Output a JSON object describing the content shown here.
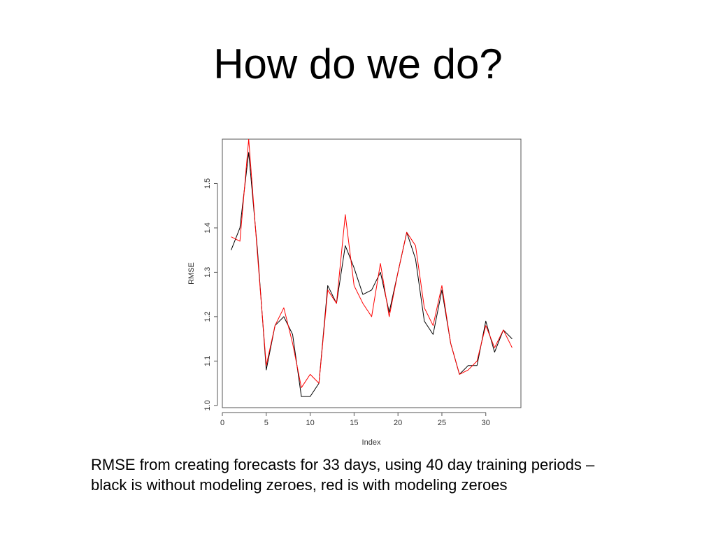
{
  "slide": {
    "title": "How do we do?",
    "caption_line1": "RMSE from creating forecasts for 33 days, using 40 day training periods –",
    "caption_line2": "black is without modeling zeroes, red is with modeling zeroes"
  },
  "chart_data": {
    "type": "line",
    "title": "",
    "xlabel": "Index",
    "ylabel": "RMSE",
    "xlim": [
      0,
      34
    ],
    "ylim": [
      0.995,
      1.6
    ],
    "xticks": [
      0,
      5,
      10,
      15,
      20,
      25,
      30
    ],
    "yticks": [
      1.0,
      1.1,
      1.2,
      1.3,
      1.4,
      1.5
    ],
    "grid": false,
    "legend": "none",
    "x": [
      1,
      2,
      3,
      4,
      5,
      6,
      7,
      8,
      9,
      10,
      11,
      12,
      13,
      14,
      15,
      16,
      17,
      18,
      19,
      20,
      21,
      22,
      23,
      24,
      25,
      26,
      27,
      28,
      29,
      30,
      31,
      32,
      33
    ],
    "series": [
      {
        "color": "#000000",
        "values": [
          1.35,
          1.4,
          1.57,
          1.35,
          1.08,
          1.18,
          1.2,
          1.16,
          1.02,
          1.02,
          1.05,
          1.27,
          1.23,
          1.36,
          1.31,
          1.25,
          1.26,
          1.3,
          1.21,
          1.3,
          1.39,
          1.33,
          1.19,
          1.16,
          1.26,
          1.14,
          1.07,
          1.09,
          1.09,
          1.19,
          1.12,
          1.17,
          1.15
        ]
      },
      {
        "color": "#ff0000",
        "values": [
          1.38,
          1.37,
          1.6,
          1.34,
          1.09,
          1.18,
          1.22,
          1.14,
          1.04,
          1.07,
          1.05,
          1.26,
          1.23,
          1.43,
          1.27,
          1.23,
          1.2,
          1.32,
          1.2,
          1.3,
          1.39,
          1.36,
          1.22,
          1.18,
          1.27,
          1.14,
          1.07,
          1.08,
          1.1,
          1.18,
          1.13,
          1.17,
          1.13
        ]
      }
    ]
  }
}
